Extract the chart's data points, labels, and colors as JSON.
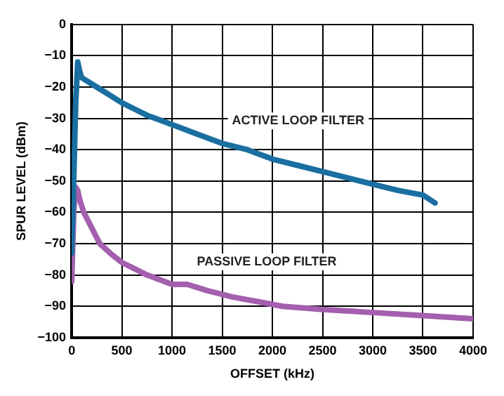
{
  "chart_data": {
    "type": "line",
    "xlabel": "OFFSET (kHz)",
    "ylabel": "SPUR LEVEL (dBm)",
    "xlim": [
      0,
      4000
    ],
    "ylim": [
      -100,
      0
    ],
    "xticks": [
      0,
      500,
      1000,
      1500,
      2000,
      2500,
      3000,
      3500,
      4000
    ],
    "yticks": [
      -100,
      -90,
      -80,
      -70,
      -60,
      -50,
      -40,
      -30,
      -20,
      -10,
      0
    ],
    "grid": true,
    "legend": false,
    "marker": "none",
    "line_style": "solid",
    "series": [
      {
        "name": "ACTIVE LOOP FILTER",
        "color": "#1a6fa0",
        "x": [
          0,
          20,
          40,
          60,
          80,
          100,
          175,
          250,
          375,
          500,
          625,
          750,
          875,
          1000,
          1250,
          1500,
          1750,
          2000,
          2250,
          2500,
          2750,
          3000,
          3250,
          3500,
          3620
        ],
        "values": [
          -73,
          -50,
          -25,
          -12,
          -15,
          -17,
          -18.5,
          -20,
          -22.5,
          -25,
          -27,
          -29,
          -30.5,
          -32,
          -35,
          -38,
          -40,
          -43,
          -45,
          -47,
          -49,
          -51,
          -53,
          -54.5,
          -57
        ]
      },
      {
        "name": "PASSIVE LOOP FILTER",
        "color": "#a45fae",
        "x": [
          0,
          20,
          40,
          60,
          80,
          120,
          200,
          280,
          400,
          500,
          625,
          750,
          875,
          1000,
          1150,
          1250,
          1350,
          1600,
          1850,
          2100,
          2500,
          3000,
          3500,
          4000
        ],
        "values": [
          -82,
          -60,
          -52,
          -53,
          -56,
          -60,
          -65,
          -70,
          -73.5,
          -76,
          -78,
          -80,
          -81.5,
          -83,
          -83,
          -84,
          -85,
          -87,
          -88.5,
          -90,
          -91,
          -92,
          -93,
          -94
        ]
      }
    ]
  }
}
